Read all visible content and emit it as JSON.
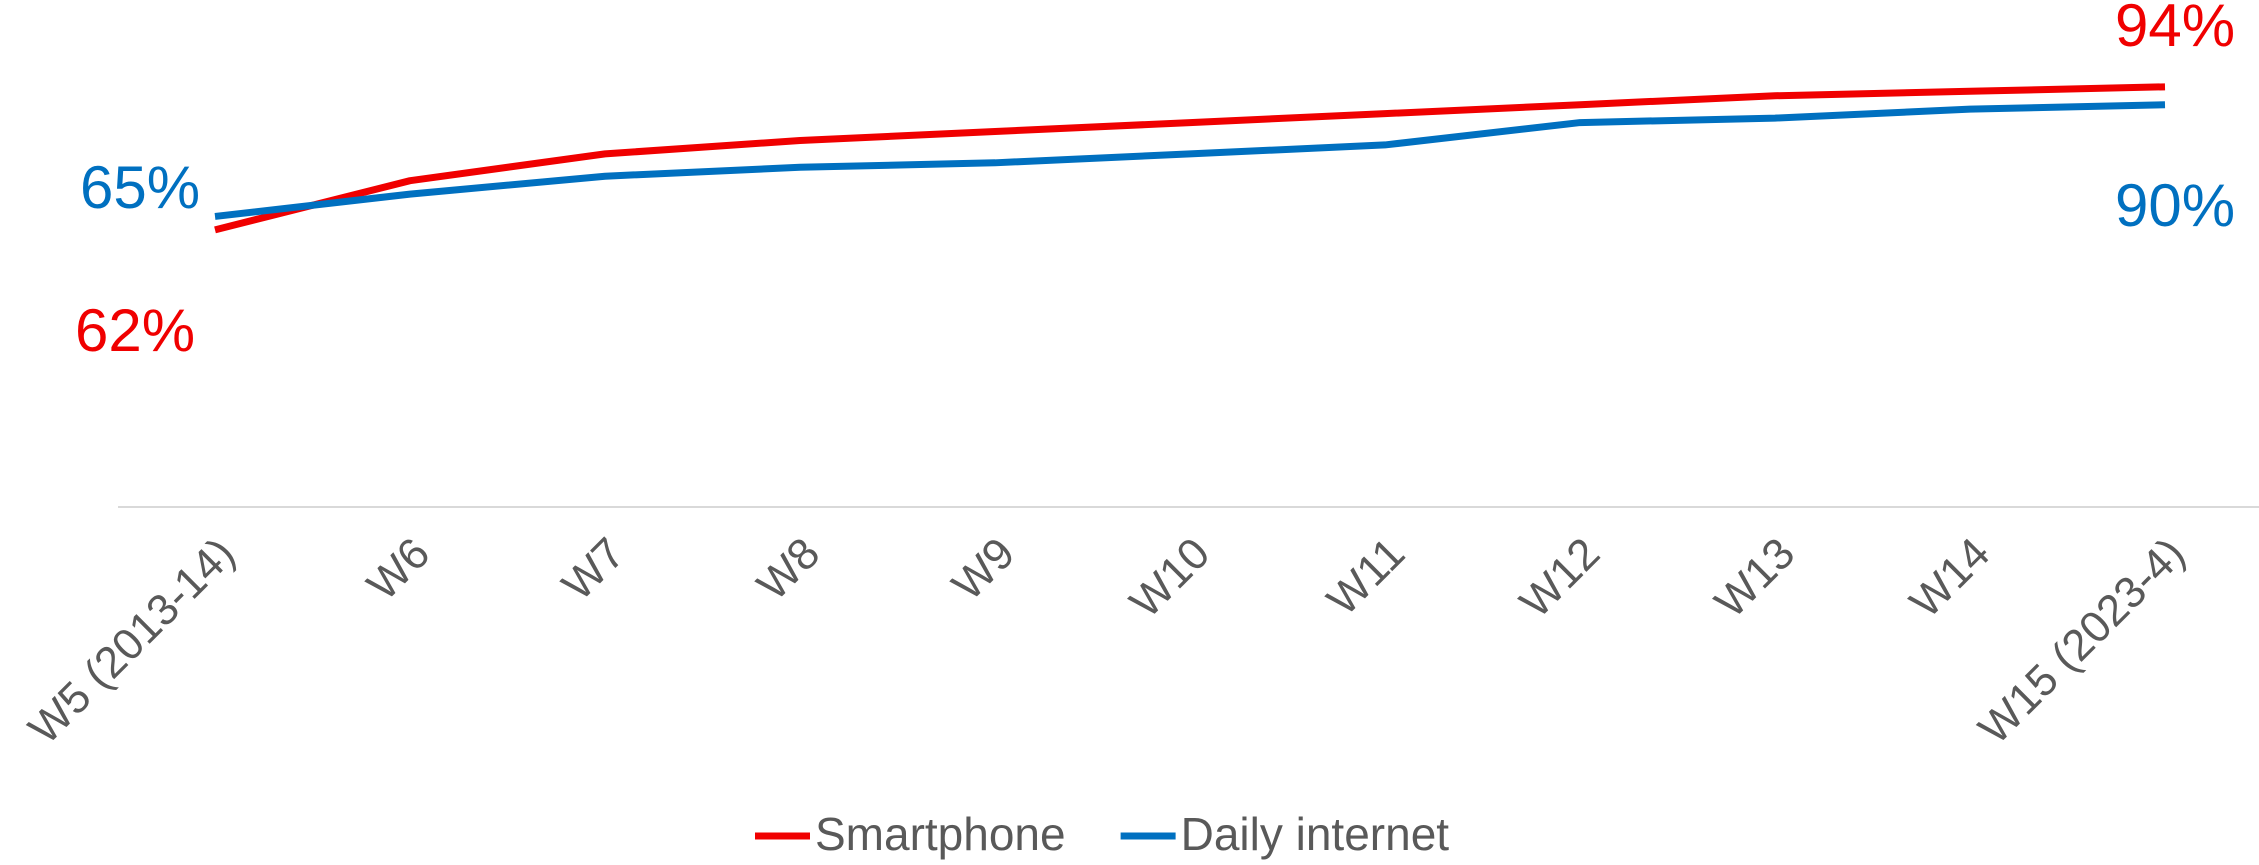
{
  "chart_data": {
    "type": "line",
    "categories": [
      "W5 (2013-14)",
      "W6",
      "W7",
      "W8",
      "W9",
      "W10",
      "W11",
      "W12",
      "W13",
      "W14",
      "W15 (2023-4)"
    ],
    "series": [
      {
        "name": "Smartphone",
        "color": "#f00000",
        "values": [
          62,
          73,
          79,
          82,
          84,
          86,
          88,
          90,
          92,
          93,
          94
        ],
        "value_labels": [
          "62%",
          null,
          null,
          null,
          null,
          null,
          null,
          null,
          null,
          null,
          "94%"
        ]
      },
      {
        "name": "Daily internet",
        "color": "#0070c0",
        "values": [
          65,
          70,
          74,
          76,
          77,
          79,
          81,
          86,
          87,
          89,
          90
        ],
        "value_labels": [
          "65%",
          null,
          null,
          null,
          null,
          null,
          null,
          null,
          null,
          null,
          "90%"
        ]
      }
    ],
    "ylim": [
      0,
      100
    ],
    "grid": false,
    "legend": "bottom"
  }
}
